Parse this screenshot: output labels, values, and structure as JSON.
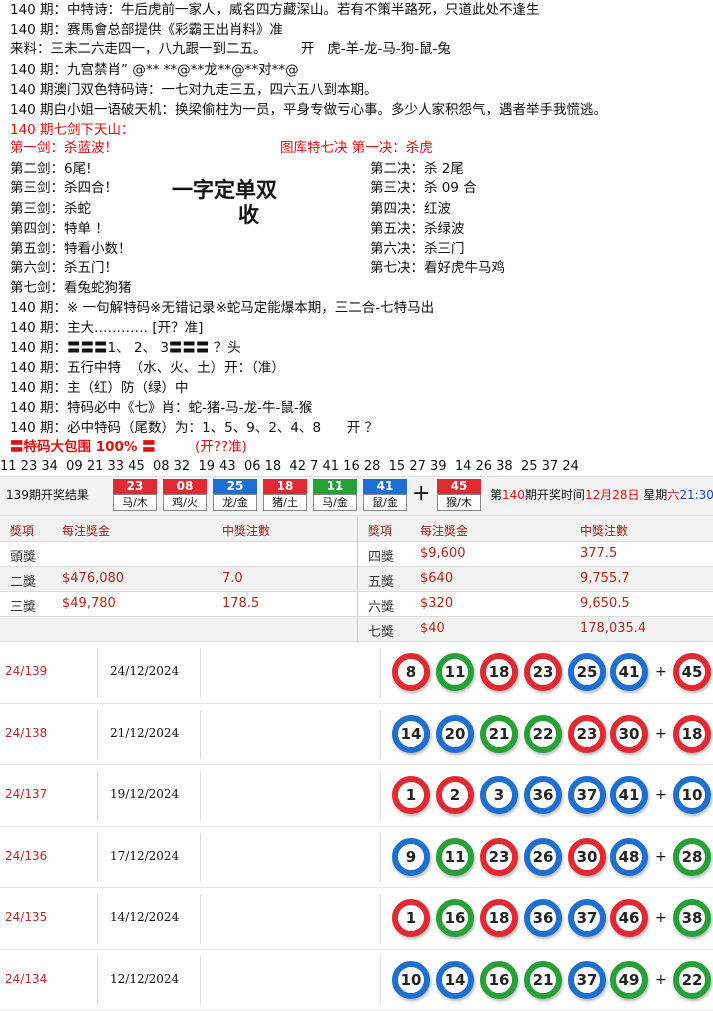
{
  "lines": [
    "140 期：中特诗：牛后虎前一家人，威名四方藏深山。若有不策半路死，只道此处不逢生",
    "140 期：赛馬會总部提供《彩霸王出肖料》准",
    "来料：三未二六走四一，八九跟一到二五。        开   虎-羊-龙-马-狗-鼠-兔",
    "140 期：九宫禁肖” @** **@**龙**@**对**@",
    "140 期澳门双色特码诗：一七对九走三五，四六五八到本期。",
    "140 期白小姐一语破天机：换梁偷柱为一员，平身专做亏心事。多少人家积怨气，遇者举手我慌逃。"
  ],
  "seven_swords": {
    "title": "140 期七剑下天山：",
    "left": [
      "第一剑：杀蓝波！",
      "第二剑：6尾!",
      "第三剑：杀四合！",
      "第三剑：杀蛇",
      "第四剑：特单 ！",
      "第五剑：特看小数！",
      "第六剑：杀五门！",
      "第七剑：看兔蛇狗猪"
    ],
    "right": [
      "图库特七决 第一决：杀虎",
      "第二决：杀 2尾",
      "第三决：杀 09 合",
      "第四决：红波",
      "第五决：杀绿波",
      "第六决：杀三门",
      "第七决：看好虎牛马鸡"
    ],
    "slogan": [
      "一字定单双",
      "收"
    ]
  },
  "more_lines": [
    "140 期：※ 一句解特码※无错记录※蛇马定能爆本期，三二合-七特马出",
    "140 期：主大………… [开？准]",
    "140 期：〓〓〓1、 2、 3〓〓〓 ？头",
    "140 期：五行中特  （水、火、土）开：（准）",
    "140 期：主（红）防（绿）中",
    "140 期：特码必中《七》肖：蛇-猪-马-龙-牛-鼠-猴",
    "140 期：必中特码（尾数）为：1、5、9、2、4、8      开 ？"
  ],
  "banner": {
    "text": "〓特码大包围 100% 〓",
    "note": "(开??准)"
  },
  "number_strip": "11 23 34  09 21 33 45  08 32  19 43  06 18  42 7 41 16 28  15 27 39  14 26 38  25 37 24",
  "plus": "+",
  "result_bar": {
    "label": "139期开奖结果",
    "balls": [
      {
        "number": "23",
        "zodiac": "马/木",
        "color": "red"
      },
      {
        "number": "08",
        "zodiac": "鸡/火",
        "color": "red"
      },
      {
        "number": "25",
        "zodiac": "龙/金",
        "color": "blue"
      },
      {
        "number": "18",
        "zodiac": "猪/土",
        "color": "red"
      },
      {
        "number": "11",
        "zodiac": "马/金",
        "color": "green"
      },
      {
        "number": "41",
        "zodiac": "鼠/金",
        "color": "blue"
      },
      {
        "number": "45",
        "zodiac": "猴/木",
        "color": "red"
      }
    ],
    "next_draw": [
      "第",
      "140",
      "期开奖时间",
      "12月28日",
      " 星期",
      "六",
      "21:30"
    ]
  },
  "prize_table": {
    "headers": [
      "獎項",
      "每注獎金",
      "中獎注數"
    ],
    "left": [
      [
        "頭獎"
      ],
      [
        "二獎",
        "$476,080",
        "7.0"
      ],
      [
        "三獎",
        "$49,780",
        "178.5"
      ]
    ],
    "right": [
      [
        "四獎",
        "$9,600",
        "377.5"
      ],
      [
        "五獎",
        "$640",
        "9,755.7"
      ],
      [
        "六獎",
        "$320",
        "9,650.5"
      ],
      [
        "七獎",
        "$40",
        "178,035.4"
      ]
    ]
  },
  "history": [
    {
      "issue": "24/139",
      "date": "24/12/2024",
      "balls": [
        {
          "n": "8",
          "color": "red"
        },
        {
          "n": "11",
          "color": "green"
        },
        {
          "n": "18",
          "color": "red"
        },
        {
          "n": "23",
          "color": "red"
        },
        {
          "n": "25",
          "color": "blue"
        },
        {
          "n": "41",
          "color": "blue"
        },
        {
          "n": "45",
          "color": "red"
        }
      ]
    },
    {
      "issue": "24/138",
      "date": "21/12/2024",
      "balls": [
        {
          "n": "14",
          "color": "blue"
        },
        {
          "n": "20",
          "color": "blue"
        },
        {
          "n": "21",
          "color": "green"
        },
        {
          "n": "22",
          "color": "green"
        },
        {
          "n": "23",
          "color": "red"
        },
        {
          "n": "30",
          "color": "red"
        },
        {
          "n": "18",
          "color": "red"
        }
      ]
    },
    {
      "issue": "24/137",
      "date": "19/12/2024",
      "balls": [
        {
          "n": "1",
          "color": "red"
        },
        {
          "n": "2",
          "color": "red"
        },
        {
          "n": "3",
          "color": "blue"
        },
        {
          "n": "36",
          "color": "blue"
        },
        {
          "n": "37",
          "color": "blue"
        },
        {
          "n": "41",
          "color": "blue"
        },
        {
          "n": "10",
          "color": "blue"
        }
      ]
    },
    {
      "issue": "24/136",
      "date": "17/12/2024",
      "balls": [
        {
          "n": "9",
          "color": "blue"
        },
        {
          "n": "11",
          "color": "green"
        },
        {
          "n": "23",
          "color": "red"
        },
        {
          "n": "26",
          "color": "blue"
        },
        {
          "n": "30",
          "color": "red"
        },
        {
          "n": "48",
          "color": "blue"
        },
        {
          "n": "28",
          "color": "green"
        }
      ]
    },
    {
      "issue": "24/135",
      "date": "14/12/2024",
      "balls": [
        {
          "n": "1",
          "color": "red"
        },
        {
          "n": "16",
          "color": "green"
        },
        {
          "n": "18",
          "color": "red"
        },
        {
          "n": "36",
          "color": "blue"
        },
        {
          "n": "37",
          "color": "blue"
        },
        {
          "n": "46",
          "color": "red"
        },
        {
          "n": "38",
          "color": "green"
        }
      ]
    },
    {
      "issue": "24/134",
      "date": "12/12/2024",
      "balls": [
        {
          "n": "10",
          "color": "blue"
        },
        {
          "n": "14",
          "color": "blue"
        },
        {
          "n": "16",
          "color": "green"
        },
        {
          "n": "21",
          "color": "green"
        },
        {
          "n": "37",
          "color": "blue"
        },
        {
          "n": "49",
          "color": "green"
        },
        {
          "n": "22",
          "color": "green"
        }
      ]
    }
  ]
}
